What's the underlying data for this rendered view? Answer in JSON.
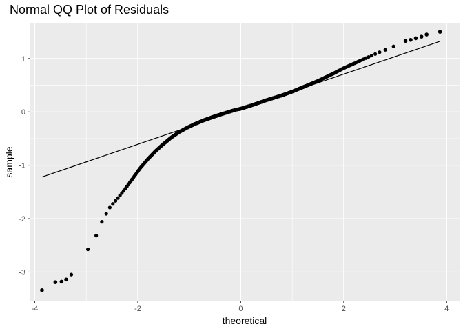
{
  "chart_data": {
    "type": "scatter",
    "title": "Normal QQ Plot of Residuals",
    "xlabel": "theoretical",
    "ylabel": "sample",
    "xlim": [
      -4.1,
      4.25
    ],
    "ylim": [
      -3.55,
      1.67
    ],
    "x_ticks": [
      -4,
      -2,
      0,
      2,
      4
    ],
    "x_tick_labels": [
      "-4",
      "-2",
      "0",
      "2",
      "4"
    ],
    "y_ticks": [
      -3,
      -2,
      -1,
      0,
      1
    ],
    "y_tick_labels": [
      "-3",
      "-2",
      "-1",
      "0",
      "1"
    ],
    "grid": true,
    "reference_line": {
      "x": [
        -3.86,
        3.86
      ],
      "y": [
        -1.22,
        1.32
      ]
    },
    "quantile_curve": {
      "x": [
        -3.4,
        -3.3,
        -3.15,
        -3.08,
        -3.02,
        -2.96,
        -2.9,
        -2.82,
        -2.72,
        -2.55,
        -2.4,
        -2.25,
        -2.1,
        -1.95,
        -1.8,
        -1.65,
        -1.5,
        -1.35,
        -1.2,
        -1.05,
        -0.9,
        -0.7,
        -0.5,
        -0.3,
        -0.1,
        0.0,
        0.2,
        0.5,
        0.8,
        1.0,
        1.2,
        1.5,
        1.8,
        2.0,
        2.3,
        2.6,
        2.9,
        3.1
      ],
      "y": [
        -3.05,
        -3.05,
        -3.02,
        -2.95,
        -2.75,
        -2.55,
        -2.47,
        -2.35,
        -2.1,
        -1.8,
        -1.63,
        -1.45,
        -1.25,
        -1.05,
        -0.88,
        -0.73,
        -0.6,
        -0.48,
        -0.38,
        -0.3,
        -0.23,
        -0.15,
        -0.08,
        -0.02,
        0.04,
        0.06,
        0.12,
        0.22,
        0.31,
        0.38,
        0.46,
        0.58,
        0.72,
        0.82,
        0.95,
        1.08,
        1.2,
        1.28
      ]
    },
    "tail_points": {
      "x": [
        -3.86,
        -3.6,
        -3.48,
        -3.39,
        3.2,
        3.3,
        3.4,
        3.51,
        3.61,
        3.87
      ],
      "y": [
        -3.34,
        -3.19,
        -3.18,
        -3.14,
        1.33,
        1.35,
        1.38,
        1.41,
        1.45,
        1.5
      ]
    },
    "n_points": 1000,
    "point_color": "#000000",
    "panel_background": "#ebebeb",
    "grid_color": "#ffffff"
  }
}
